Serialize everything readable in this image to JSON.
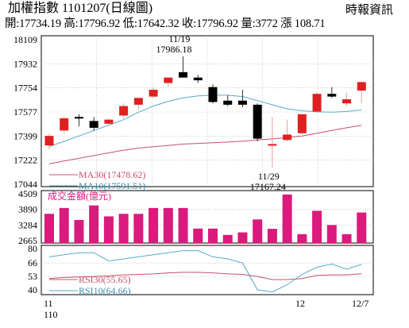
{
  "header": {
    "title": "加權指數 1101207(日線圖)",
    "source": "時報資訊",
    "ohlc": "開:17734.19 高:17796.92 低:17642.32 收:17796.92 量:3772 漲 108.71"
  },
  "colors": {
    "up": "#e02020",
    "down": "#000000",
    "volume": "#d81b7c",
    "ma10": "#5aa9c8",
    "ma30": "#c8506e",
    "rsi10": "#5aa9c8",
    "rsi30": "#c8506e",
    "grid": "#aaaaaa"
  },
  "chart_data": [
    {
      "type": "candlestick",
      "ylim": [
        17044,
        18109
      ],
      "y_ticks": [
        "18109",
        "17932",
        "17754",
        "17577",
        "17399",
        "17222",
        "17044"
      ],
      "candles": [
        {
          "o": 17330,
          "h": 17420,
          "l": 17300,
          "c": 17400
        },
        {
          "o": 17440,
          "h": 17540,
          "l": 17420,
          "c": 17530
        },
        {
          "o": 17540,
          "h": 17560,
          "l": 17470,
          "c": 17535
        },
        {
          "o": 17510,
          "h": 17540,
          "l": 17440,
          "c": 17460
        },
        {
          "o": 17490,
          "h": 17530,
          "l": 17480,
          "c": 17520
        },
        {
          "o": 17550,
          "h": 17640,
          "l": 17530,
          "c": 17620
        },
        {
          "o": 17630,
          "h": 17680,
          "l": 17590,
          "c": 17680
        },
        {
          "o": 17690,
          "h": 17760,
          "l": 17680,
          "c": 17740
        },
        {
          "o": 17790,
          "h": 17830,
          "l": 17760,
          "c": 17830
        },
        {
          "o": 17870,
          "h": 17986.18,
          "l": 17830,
          "c": 17830
        },
        {
          "o": 17830,
          "h": 17850,
          "l": 17790,
          "c": 17810
        },
        {
          "o": 17760,
          "h": 17780,
          "l": 17640,
          "c": 17650
        },
        {
          "o": 17660,
          "h": 17700,
          "l": 17620,
          "c": 17630
        },
        {
          "o": 17660,
          "h": 17740,
          "l": 17610,
          "c": 17630
        },
        {
          "o": 17630,
          "h": 17640,
          "l": 17360,
          "c": 17380
        },
        {
          "o": 17340,
          "h": 17540,
          "l": 17167.24,
          "c": 17340
        },
        {
          "o": 17370,
          "h": 17520,
          "l": 17360,
          "c": 17410
        },
        {
          "o": 17420,
          "h": 17560,
          "l": 17410,
          "c": 17560
        },
        {
          "o": 17580,
          "h": 17720,
          "l": 17570,
          "c": 17710
        },
        {
          "o": 17710,
          "h": 17760,
          "l": 17680,
          "c": 17690
        },
        {
          "o": 17640,
          "h": 17720,
          "l": 17620,
          "c": 17670
        },
        {
          "o": 17734.19,
          "h": 17796.92,
          "l": 17642.32,
          "c": 17796.92
        }
      ],
      "ma30": [
        17195,
        17215,
        17235,
        17255,
        17275,
        17295,
        17310,
        17320,
        17330,
        17340,
        17345,
        17350,
        17355,
        17362,
        17370,
        17378,
        17388,
        17400,
        17420,
        17440,
        17460,
        17478.62
      ],
      "ma10": [
        17322,
        17360,
        17400,
        17440,
        17480,
        17520,
        17575,
        17620,
        17655,
        17680,
        17695,
        17700,
        17700,
        17690,
        17660,
        17630,
        17600,
        17585,
        17578,
        17575,
        17580,
        17591.51
      ],
      "annotations": [
        {
          "label_date": "11/19",
          "label_value": "17986.18"
        },
        {
          "label_date": "11/29",
          "label_value": "17167.24"
        }
      ],
      "legend": {
        "ma30": "MA30(17478.62)",
        "ma10": "MA10(17591.51)"
      }
    },
    {
      "type": "bar",
      "title": "成交金額(億元)",
      "ylim": [
        2665,
        4509
      ],
      "y_ticks": [
        "4509",
        "3890",
        "3284",
        "2665"
      ],
      "values": [
        3720,
        3950,
        3480,
        4050,
        3620,
        3720,
        3720,
        3950,
        3950,
        3950,
        3140,
        3140,
        2890,
        2990,
        3500,
        3130,
        4480,
        2920,
        3840,
        3280,
        2920,
        3772
      ]
    },
    {
      "type": "line",
      "ylim": [
        35,
        80
      ],
      "y_ticks": [
        "80",
        "66",
        "53",
        "40"
      ],
      "rsi30": [
        51,
        52,
        52.5,
        53,
        53.5,
        54.5,
        55,
        55.5,
        56.5,
        57,
        57,
        56.5,
        55.5,
        55,
        53,
        50,
        50,
        51,
        54,
        54.5,
        54.5,
        55.65
      ],
      "rsi10": [
        72,
        74,
        76,
        76,
        68,
        70,
        72,
        74,
        76,
        78,
        78,
        72,
        70,
        66,
        40,
        38,
        45,
        55,
        62,
        65,
        60,
        64.66
      ],
      "legend": {
        "rsi30": "RSI30(55.65)",
        "rsi10": "RSI10(64.66)"
      }
    }
  ],
  "x_axis": {
    "labels": [
      "11",
      "110",
      "12",
      "12/7"
    ]
  }
}
